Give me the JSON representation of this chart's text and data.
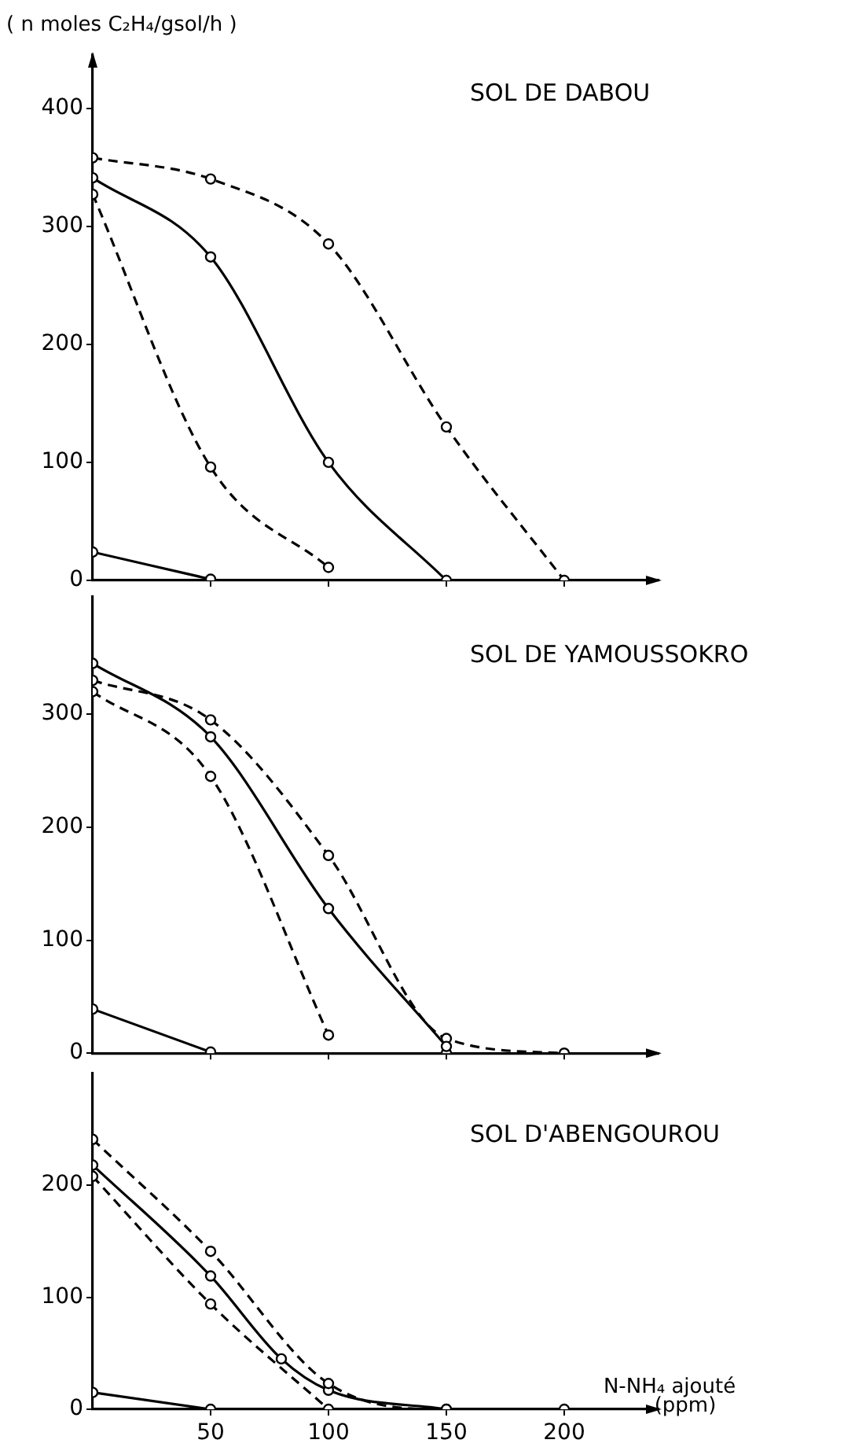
{
  "chart_data": [
    {
      "type": "line",
      "title": "SOL DE DABOU",
      "ylabel": "( n moles C₂H₄/gsol/h )",
      "x": [
        0,
        50,
        100,
        150,
        200
      ],
      "xlim": [
        0,
        240
      ],
      "xticks": [
        {
          "value": 50,
          "label": null
        },
        {
          "value": 100,
          "label": null
        },
        {
          "value": 150,
          "label": null
        },
        {
          "value": 200,
          "label": null
        }
      ],
      "ylim": [
        0,
        445
      ],
      "yticks": [
        0,
        100,
        200,
        300,
        400
      ],
      "tick_labels": "y",
      "grid": false,
      "legend": false,
      "marker": "circle",
      "series": [
        {
          "color": "#000000",
          "line_style": "dashed",
          "values": [
            358,
            340,
            285,
            130,
            0
          ]
        },
        {
          "color": "#000000",
          "line_style": "solid",
          "values": [
            341,
            274,
            100,
            0,
            null
          ]
        },
        {
          "color": "#000000",
          "line_style": "dashed",
          "values": [
            327,
            96,
            11,
            null,
            null
          ]
        },
        {
          "color": "#000000",
          "line_style": "solid",
          "values": [
            24,
            1,
            null,
            null,
            null
          ]
        }
      ]
    },
    {
      "type": "line",
      "title": "SOL DE YAMOUSSOKRO",
      "x": [
        0,
        50,
        100,
        150,
        200
      ],
      "xlim": [
        0,
        240
      ],
      "xticks": [
        {
          "value": 50,
          "label": null
        },
        {
          "value": 100,
          "label": null
        },
        {
          "value": 150,
          "label": null
        },
        {
          "value": 200,
          "label": null
        }
      ],
      "ylim": [
        0,
        404
      ],
      "yticks": [
        0,
        100,
        200,
        300
      ],
      "tick_labels": "y",
      "grid": false,
      "legend": false,
      "marker": "circle",
      "series": [
        {
          "color": "#000000",
          "line_style": "solid",
          "values": [
            345,
            280,
            128,
            6,
            null
          ]
        },
        {
          "color": "#000000",
          "line_style": "dashed",
          "values": [
            330,
            295,
            175,
            13,
            0
          ]
        },
        {
          "color": "#000000",
          "line_style": "dashed",
          "values": [
            320,
            245,
            16,
            null,
            null
          ]
        },
        {
          "color": "#000000",
          "line_style": "solid",
          "values": [
            39,
            1,
            null,
            0,
            null
          ]
        }
      ]
    },
    {
      "type": "line",
      "title": "SOL D'ABENGOUROU",
      "xlabel": "N-NH₄ ajouté\n(ppm)",
      "x": [
        0,
        50,
        100,
        150,
        200
      ],
      "xlim": [
        0,
        240
      ],
      "xticks": [
        50,
        100,
        150,
        200
      ],
      "ylim": [
        0,
        300
      ],
      "yticks": [
        0,
        100,
        200
      ],
      "grid": false,
      "legend": false,
      "marker": "circle",
      "series": [
        {
          "color": "#000000",
          "line_style": "dashed",
          "values": [
            241,
            141,
            23,
            0,
            0
          ]
        },
        {
          "color": "#000000",
          "line_style": "solid",
          "x": [
            0,
            50,
            80,
            100,
            150
          ],
          "values": [
            218,
            119,
            45,
            17,
            0
          ]
        },
        {
          "color": "#000000",
          "line_style": "dashed",
          "values": [
            208,
            94,
            0,
            null,
            null
          ]
        },
        {
          "color": "#000000",
          "line_style": "solid",
          "values": [
            15,
            0,
            null,
            null,
            null
          ]
        }
      ]
    }
  ]
}
